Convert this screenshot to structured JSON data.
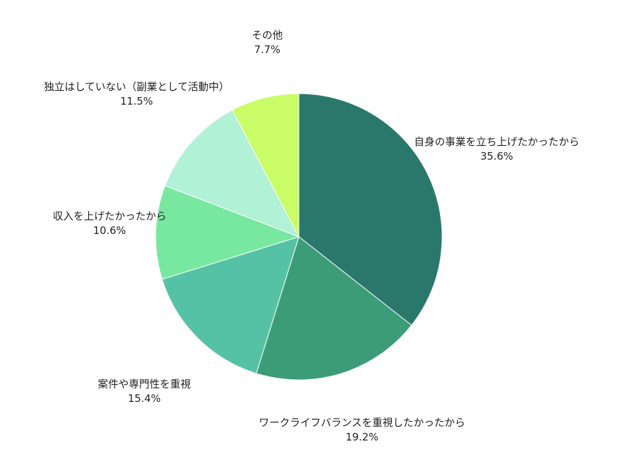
{
  "chart_data": {
    "type": "pie",
    "start_angle": "12 o'clock",
    "direction": "clockwise",
    "legend": "none",
    "slices": [
      {
        "label": "自身の事業を立ち上げたかったから",
        "value": 35.6,
        "value_label": "35.6%",
        "color": "#2a786c"
      },
      {
        "label": "ワークライフバランスを重視したかったから",
        "value": 19.2,
        "value_label": "19.2%",
        "color": "#3d9c78"
      },
      {
        "label": "案件や専門性を重視",
        "value": 15.4,
        "value_label": "15.4%",
        "color": "#55c2a6"
      },
      {
        "label": "収入を上げたかったから",
        "value": 10.6,
        "value_label": "10.6%",
        "color": "#78e8a0"
      },
      {
        "label": "独立はしていない（副業として活動中）",
        "value": 11.5,
        "value_label": "11.5%",
        "color": "#b1f1d6"
      },
      {
        "label": "その他",
        "value": 7.7,
        "value_label": "7.7%",
        "color": "#c9fc66"
      }
    ]
  }
}
